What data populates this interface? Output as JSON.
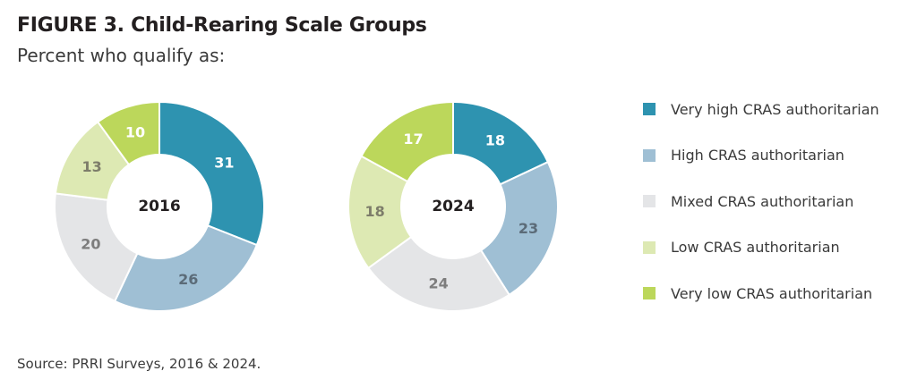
{
  "header": {
    "title": "FIGURE 3.  Child-Rearing Scale Groups",
    "subtitle": "Percent who qualify as:"
  },
  "source": "Source: PRRI Surveys, 2016 & 2024.",
  "colors": {
    "very_high": "#2e93b0",
    "high": "#9fbfd4",
    "mixed": "#e4e5e7",
    "low": "#dde9b3",
    "very_low": "#bcd75b"
  },
  "chart_data": [
    {
      "type": "donut",
      "center_label": "2016",
      "categories": [
        "Very high CRAS authoritarian",
        "High CRAS authoritarian",
        "Mixed CRAS authoritarian",
        "Low CRAS authoritarian",
        "Very low CRAS authoritarian"
      ],
      "values": [
        31,
        26,
        20,
        13,
        10
      ],
      "legend_placement": "right"
    },
    {
      "type": "donut",
      "center_label": "2024",
      "categories": [
        "Very high CRAS authoritarian",
        "High CRAS authoritarian",
        "Mixed CRAS authoritarian",
        "Low CRAS authoritarian",
        "Very low CRAS authoritarian"
      ],
      "values": [
        18,
        23,
        24,
        18,
        17
      ],
      "legend_placement": "right"
    }
  ],
  "legend": [
    {
      "label": "Very high CRAS authoritarian",
      "color": "#2e93b0"
    },
    {
      "label": "High CRAS authoritarian",
      "color": "#9fbfd4"
    },
    {
      "label": "Mixed CRAS authoritarian",
      "color": "#e4e5e7"
    },
    {
      "label": "Low CRAS authoritarian",
      "color": "#dde9b3"
    },
    {
      "label": "Very low CRAS authoritarian",
      "color": "#bcd75b"
    }
  ]
}
